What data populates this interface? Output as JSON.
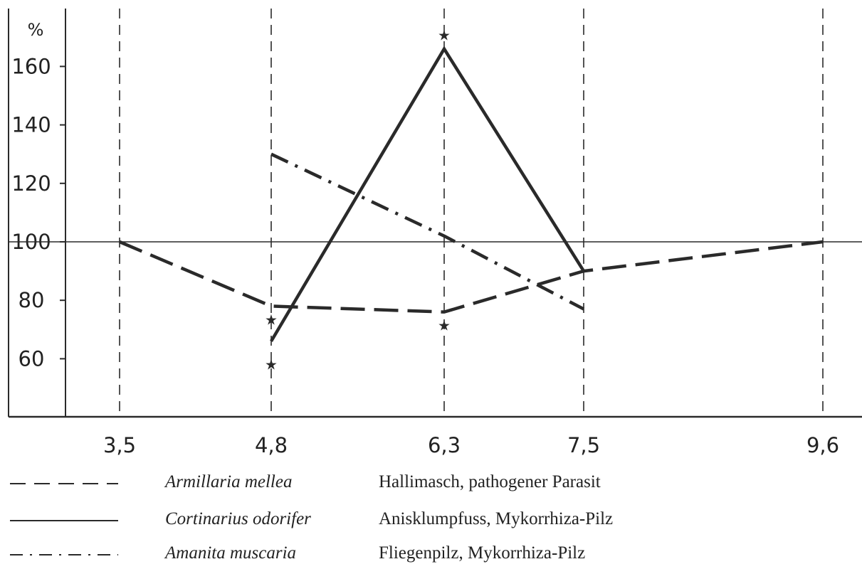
{
  "chart_data": {
    "type": "line",
    "ylabel": "%",
    "x": [
      "3,5",
      "4,8",
      "6,3",
      "7,5",
      "9,6"
    ],
    "y_ticks": [
      60,
      80,
      100,
      120,
      140,
      160
    ],
    "ylim": [
      40,
      180
    ],
    "reference_line": 100,
    "grid": "vertical dashed lines at each x value",
    "series": [
      {
        "name": "Armillaria mellea",
        "style": "dashed",
        "x": [
          "3,5",
          "4,8",
          "6,3",
          "7,5",
          "9,6"
        ],
        "values": [
          100,
          78,
          76,
          90,
          100
        ],
        "significant": [
          false,
          true,
          true,
          false,
          false
        ]
      },
      {
        "name": "Cortinarius odorifer",
        "style": "solid",
        "x": [
          "4,8",
          "6,3",
          "7,5"
        ],
        "values": [
          66,
          166,
          90
        ],
        "significant": [
          true,
          true,
          false
        ]
      },
      {
        "name": "Amanita muscaria",
        "style": "dash-dot",
        "x": [
          "4,8",
          "6,3",
          "7,5"
        ],
        "values": [
          130,
          102,
          77
        ],
        "significant": [
          false,
          false,
          false
        ]
      }
    ],
    "marker_symbol": "★"
  },
  "legend": [
    {
      "latin": "Armillaria mellea",
      "description": "Hallimasch, pathogener Parasit",
      "style": "dashed"
    },
    {
      "latin": "Cortinarius odorifer",
      "description": "Anisklumpfuss, Mykorrhiza-Pilz",
      "style": "solid"
    },
    {
      "latin": "Amanita muscaria",
      "description": "Fliegenpilz, Mykorrhiza-Pilz",
      "style": "dash-dot"
    }
  ],
  "colors": {
    "ink": "#2a2a2a",
    "background": "#ffffff"
  }
}
